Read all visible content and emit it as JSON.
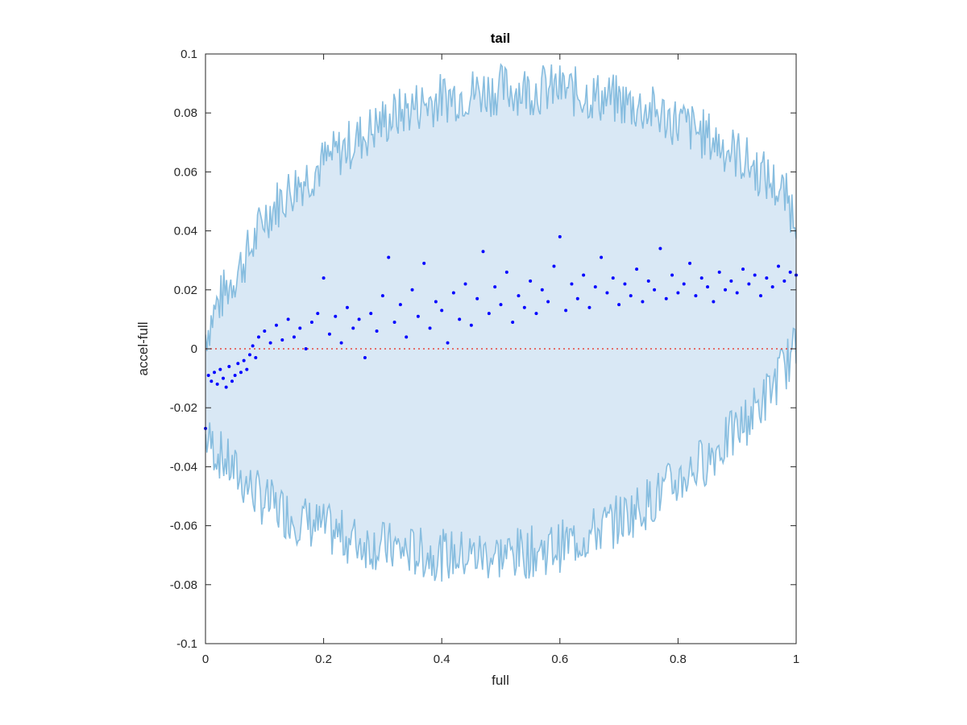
{
  "chart_data": {
    "type": "scatter",
    "title": "tail",
    "xlabel": "full",
    "ylabel": "accel-full",
    "xlim": [
      0,
      1
    ],
    "ylim": [
      -0.1,
      0.1
    ],
    "xticks": [
      0,
      0.2,
      0.4,
      0.6,
      0.8,
      1
    ],
    "xtick_labels": [
      "0",
      "0.2",
      "0.4",
      "0.6",
      "0.8",
      "1"
    ],
    "yticks": [
      -0.1,
      -0.08,
      -0.06,
      -0.04,
      -0.02,
      0,
      0.02,
      0.04,
      0.06,
      0.08,
      0.1
    ],
    "ytick_labels": [
      "-0.1",
      "-0.08",
      "-0.06",
      "-0.04",
      "-0.02",
      "0",
      "0.02",
      "0.04",
      "0.06",
      "0.08",
      "0.1"
    ],
    "grid": false,
    "reference_line": {
      "y": 0,
      "style": "dotted",
      "color": "#e8463c"
    },
    "envelope": {
      "color_line": "#87bddf",
      "color_fill": "#d9e8f5",
      "x": [
        0,
        0.02,
        0.05,
        0.08,
        0.1,
        0.15,
        0.2,
        0.25,
        0.3,
        0.35,
        0.4,
        0.45,
        0.5,
        0.55,
        0.6,
        0.65,
        0.7,
        0.75,
        0.8,
        0.85,
        0.9,
        0.95,
        0.98,
        1
      ],
      "upper": [
        0.005,
        0.015,
        0.025,
        0.035,
        0.045,
        0.055,
        0.063,
        0.07,
        0.077,
        0.082,
        0.085,
        0.087,
        0.088,
        0.088,
        0.088,
        0.086,
        0.084,
        0.081,
        0.077,
        0.072,
        0.066,
        0.058,
        0.052,
        0.045
      ],
      "lower": [
        -0.03,
        -0.035,
        -0.042,
        -0.048,
        -0.052,
        -0.057,
        -0.061,
        -0.065,
        -0.067,
        -0.069,
        -0.07,
        -0.07,
        -0.07,
        -0.069,
        -0.067,
        -0.063,
        -0.058,
        -0.052,
        -0.045,
        -0.037,
        -0.028,
        -0.016,
        -0.006,
        0.0
      ]
    },
    "series": [
      {
        "type": "scatter",
        "color": "#0000ff",
        "x": [
          0,
          0.005,
          0.01,
          0.015,
          0.02,
          0.025,
          0.03,
          0.035,
          0.04,
          0.045,
          0.05,
          0.055,
          0.06,
          0.065,
          0.07,
          0.075,
          0.08,
          0.085,
          0.09,
          0.1,
          0.11,
          0.12,
          0.13,
          0.14,
          0.15,
          0.16,
          0.17,
          0.18,
          0.19,
          0.2,
          0.21,
          0.22,
          0.23,
          0.24,
          0.25,
          0.26,
          0.27,
          0.28,
          0.29,
          0.3,
          0.31,
          0.32,
          0.33,
          0.34,
          0.35,
          0.36,
          0.37,
          0.38,
          0.39,
          0.4,
          0.41,
          0.42,
          0.43,
          0.44,
          0.45,
          0.46,
          0.47,
          0.48,
          0.49,
          0.5,
          0.51,
          0.52,
          0.53,
          0.54,
          0.55,
          0.56,
          0.57,
          0.58,
          0.59,
          0.6,
          0.61,
          0.62,
          0.63,
          0.64,
          0.65,
          0.66,
          0.67,
          0.68,
          0.69,
          0.7,
          0.71,
          0.72,
          0.73,
          0.74,
          0.75,
          0.76,
          0.77,
          0.78,
          0.79,
          0.8,
          0.81,
          0.82,
          0.83,
          0.84,
          0.85,
          0.86,
          0.87,
          0.88,
          0.89,
          0.9,
          0.91,
          0.92,
          0.93,
          0.94,
          0.95,
          0.96,
          0.97,
          0.98,
          0.99,
          1.0
        ],
        "y": [
          -0.027,
          -0.009,
          -0.011,
          -0.008,
          -0.012,
          -0.007,
          -0.01,
          -0.013,
          -0.006,
          -0.011,
          -0.009,
          -0.005,
          -0.008,
          -0.004,
          -0.007,
          -0.002,
          0.001,
          -0.003,
          0.004,
          0.006,
          0.002,
          0.008,
          0.003,
          0.01,
          0.004,
          0.007,
          0.0,
          0.009,
          0.012,
          0.024,
          0.005,
          0.011,
          0.002,
          0.014,
          0.007,
          0.01,
          -0.003,
          0.012,
          0.006,
          0.018,
          0.031,
          0.009,
          0.015,
          0.004,
          0.02,
          0.011,
          0.029,
          0.007,
          0.016,
          0.013,
          0.002,
          0.019,
          0.01,
          0.022,
          0.008,
          0.017,
          0.033,
          0.012,
          0.021,
          0.015,
          0.026,
          0.009,
          0.018,
          0.014,
          0.023,
          0.012,
          0.02,
          0.016,
          0.028,
          0.038,
          0.013,
          0.022,
          0.017,
          0.025,
          0.014,
          0.021,
          0.031,
          0.019,
          0.024,
          0.015,
          0.022,
          0.018,
          0.027,
          0.016,
          0.023,
          0.02,
          0.034,
          0.017,
          0.025,
          0.019,
          0.022,
          0.029,
          0.018,
          0.024,
          0.021,
          0.016,
          0.026,
          0.02,
          0.023,
          0.019,
          0.027,
          0.022,
          0.025,
          0.018,
          0.024,
          0.021,
          0.028,
          0.023,
          0.026,
          0.025
        ]
      }
    ]
  }
}
